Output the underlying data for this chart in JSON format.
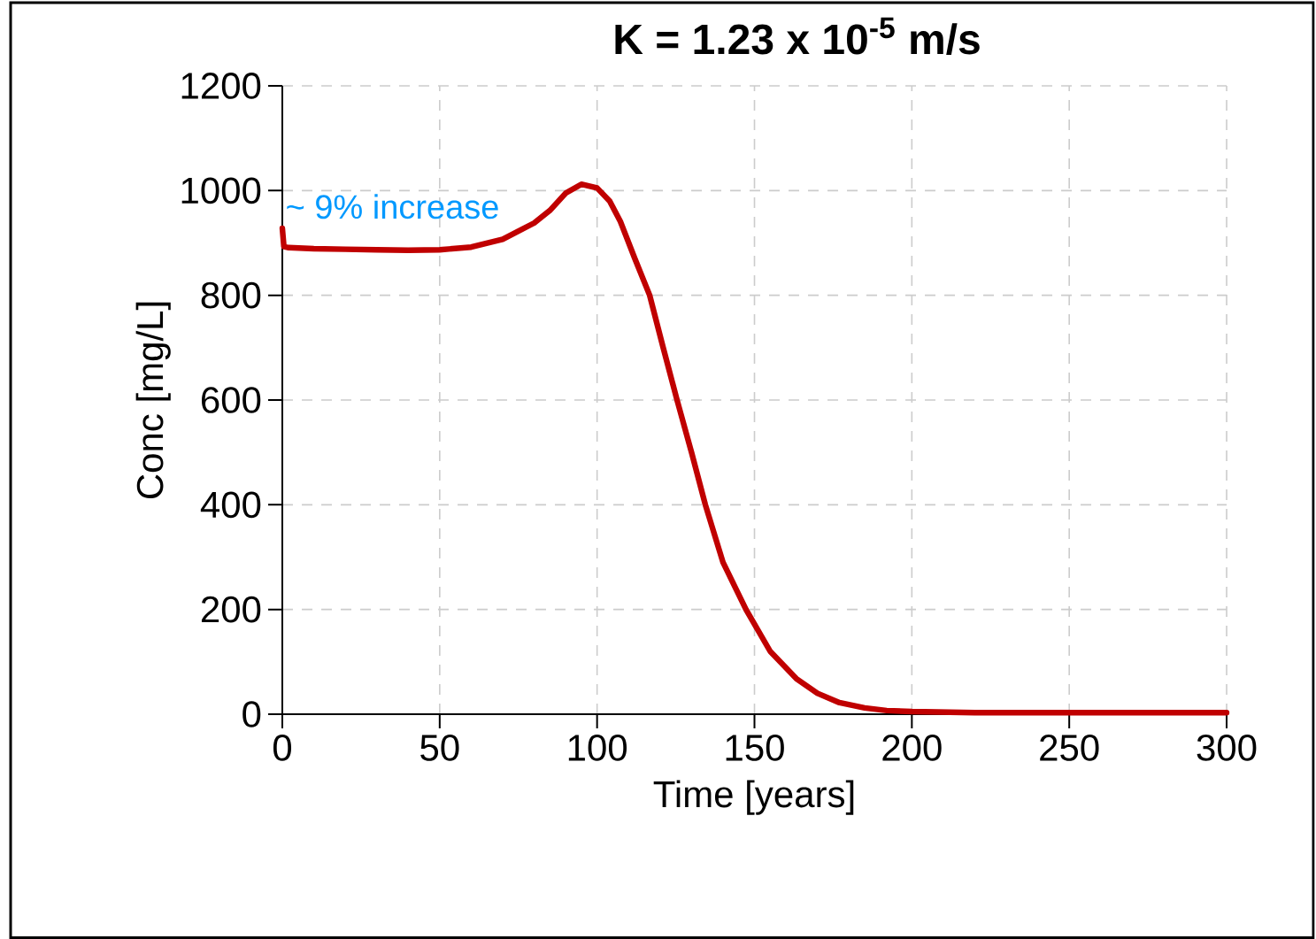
{
  "chart_data": {
    "type": "line",
    "title": "**K = 1.23 x 10$^{-5}$ m/s**",
    "xlabel": "Time [years]",
    "ylabel": "Conc [mg/L]",
    "x": [
      0,
      0.5,
      2,
      10,
      20,
      30,
      40,
      50,
      60,
      70,
      80,
      85,
      90,
      95,
      100,
      104,
      107.4,
      112,
      116.7,
      121,
      125.4,
      130,
      134.4,
      140,
      147.3,
      155,
      163.3,
      170,
      177,
      185,
      192,
      200,
      220,
      250,
      300
    ],
    "series": [
      {
        "color": "#c00000",
        "values": [
          928,
          893,
          891,
          889,
          888,
          887,
          886,
          887,
          892,
          907,
          938,
          962,
          995,
          1012,
          1005,
          980,
          941,
          870,
          800,
          700,
          600,
          500,
          400,
          290,
          200,
          120,
          68,
          40,
          22,
          12,
          7,
          5,
          3,
          3,
          3
        ]
      }
    ],
    "annotations": [
      "~ 9% increase"
    ],
    "xlim": [
      0,
      300
    ],
    "ylim": [
      0,
      1200
    ],
    "xticks": [
      0,
      50,
      100,
      150,
      200,
      250,
      300
    ],
    "yticks": [
      0,
      200,
      400,
      600,
      800,
      1000,
      1200
    ],
    "grid": true,
    "marker": "none",
    "line_style": "solid"
  }
}
